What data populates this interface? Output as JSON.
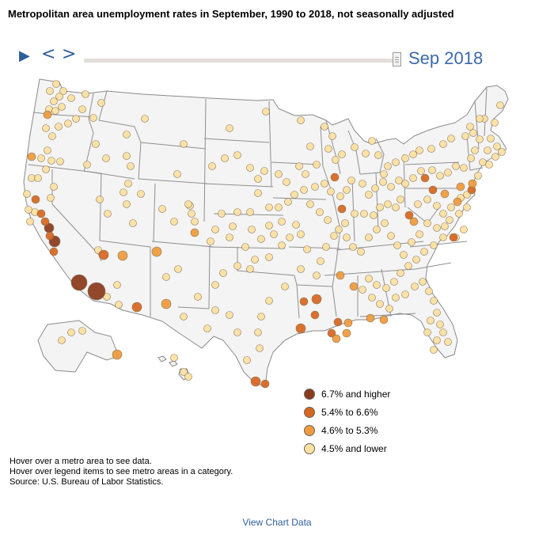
{
  "title": "Metropolitan area unemployment rates in September, 1990 to 2018, not seasonally adjusted",
  "controls": {
    "play_icon": "play-icon",
    "prev_icon": "chevron-left-icon",
    "next_icon": "chevron-right-icon",
    "current_period": "Sep 2018",
    "slider_position": 1.0
  },
  "legend": [
    {
      "label": "6.7% and higher",
      "color": "#8b3a1c"
    },
    {
      "label": "5.4% to 6.6%",
      "color": "#d8661f"
    },
    {
      "label": "4.6% to 5.3%",
      "color": "#f09a3a"
    },
    {
      "label": "4.5% and lower",
      "color": "#fde1a0"
    }
  ],
  "notes": {
    "line1": "Hover over a metro area to see data.",
    "line2": "Hover over legend items to see metro areas in a category.",
    "source": "Source: U.S. Bureau of Labor Statistics."
  },
  "view_chart_data": "View Chart Data",
  "colors": {
    "state_fill": "#f4f4f4",
    "state_border": "#8a8a8a",
    "accent": "#3c6aa8"
  }
}
